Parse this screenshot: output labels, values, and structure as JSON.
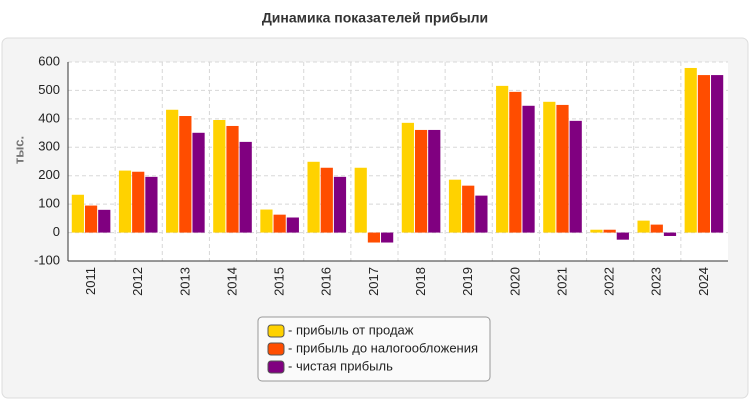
{
  "chart_data": {
    "type": "bar",
    "title": "Динамика показателей прибыли",
    "y_label": "тыс.",
    "categories": [
      "2011",
      "2012",
      "2013",
      "2014",
      "2015",
      "2016",
      "2017",
      "2018",
      "2019",
      "2020",
      "2021",
      "2022",
      "2023",
      "2024"
    ],
    "series": [
      {
        "name": "- прибыль от продаж",
        "color": "#ffd200",
        "values": [
          133,
          218,
          432,
          396,
          81,
          249,
          228,
          386,
          186,
          516,
          460,
          10,
          42,
          579
        ]
      },
      {
        "name": "- прибыль до налогообложения",
        "color": "#ff4d00",
        "values": [
          95,
          214,
          410,
          375,
          63,
          228,
          -35,
          361,
          165,
          495,
          449,
          10,
          28,
          554
        ]
      },
      {
        "name": "- чистая прибыль",
        "color": "#800080",
        "values": [
          80,
          196,
          351,
          319,
          53,
          196,
          -35,
          361,
          130,
          446,
          393,
          -25,
          -12,
          554
        ]
      }
    ],
    "ylim": [
      -100,
      600
    ],
    "yticks": [
      -100,
      0,
      100,
      200,
      300,
      400,
      500,
      600
    ],
    "grid": true
  }
}
